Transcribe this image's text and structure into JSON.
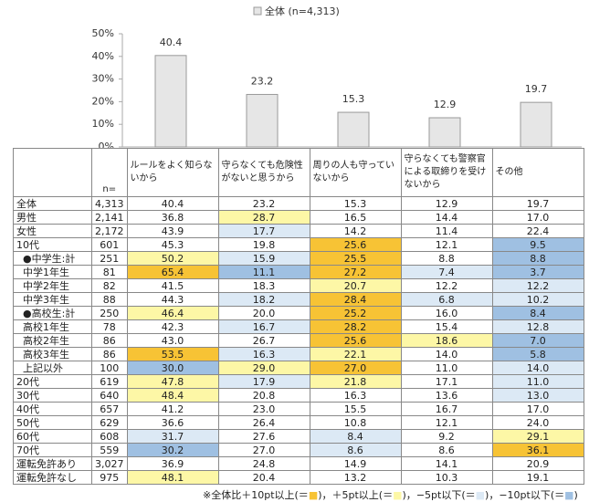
{
  "chart_data": {
    "type": "bar",
    "categories": [
      "ルールをよく知らないから",
      "守らなくても危険性がないと思うから",
      "周りの人も守っていないから",
      "守らなくても警察官による取締りを受けないから",
      "その他"
    ],
    "series": [
      {
        "name": "全体 (n=4,313)",
        "color": "#e6e6e6",
        "values": [
          40.4,
          23.2,
          15.3,
          12.9,
          19.7
        ]
      }
    ],
    "ylim": [
      0,
      50
    ],
    "yticks": [
      {
        "value": 0,
        "label": "0%"
      },
      {
        "value": 10,
        "label": "10%"
      },
      {
        "value": 20,
        "label": "20%"
      },
      {
        "value": 30,
        "label": "30%"
      },
      {
        "value": 40,
        "label": "40%"
      },
      {
        "value": 50,
        "label": "50%"
      }
    ],
    "legend": "top"
  },
  "table": {
    "n_header": "n=",
    "rows": [
      {
        "label": "全体",
        "n": "4,313",
        "cells": [
          "40.4",
          "23.2",
          "15.3",
          "12.9",
          "19.7"
        ],
        "colors": [
          null,
          null,
          null,
          null,
          null
        ]
      },
      {
        "label": "男性",
        "n": "2,141",
        "cells": [
          "36.8",
          "28.7",
          "16.5",
          "14.4",
          "17.0"
        ],
        "colors": [
          null,
          "#fdf7a6",
          null,
          null,
          null
        ]
      },
      {
        "label": "女性",
        "n": "2,172",
        "cells": [
          "43.9",
          "17.7",
          "14.2",
          "11.4",
          "22.4"
        ],
        "colors": [
          null,
          "#dce9f5",
          null,
          null,
          null
        ]
      },
      {
        "label": "10代",
        "n": "601",
        "cells": [
          "45.3",
          "19.8",
          "25.6",
          "12.1",
          "9.5"
        ],
        "colors": [
          null,
          null,
          "#f7c335",
          null,
          "#9fc0e2"
        ]
      },
      {
        "label": "●中学生:計",
        "n": "251",
        "indent": true,
        "cells": [
          "50.2",
          "15.9",
          "25.5",
          "8.8",
          "8.8"
        ],
        "colors": [
          "#fdf7a6",
          "#dce9f5",
          "#f7c335",
          null,
          "#9fc0e2"
        ]
      },
      {
        "label": "中学1年生",
        "n": "81",
        "indent": true,
        "cells": [
          "65.4",
          "11.1",
          "27.2",
          "7.4",
          "3.7"
        ],
        "colors": [
          "#f7c335",
          "#9fc0e2",
          "#f7c335",
          "#dce9f5",
          "#9fc0e2"
        ]
      },
      {
        "label": "中学2年生",
        "n": "82",
        "indent": true,
        "cells": [
          "41.5",
          "18.3",
          "20.7",
          "12.2",
          "12.2"
        ],
        "colors": [
          null,
          null,
          "#fdf7a6",
          null,
          "#dce9f5"
        ]
      },
      {
        "label": "中学3年生",
        "n": "88",
        "indent": true,
        "cells": [
          "44.3",
          "18.2",
          "28.4",
          "6.8",
          "10.2"
        ],
        "colors": [
          null,
          "#dce9f5",
          "#f7c335",
          "#dce9f5",
          "#dce9f5"
        ]
      },
      {
        "label": "●高校生:計",
        "n": "250",
        "indent": true,
        "cells": [
          "46.4",
          "20.0",
          "25.2",
          "16.0",
          "8.4"
        ],
        "colors": [
          "#fdf7a6",
          null,
          "#f7c335",
          null,
          "#9fc0e2"
        ]
      },
      {
        "label": "高校1年生",
        "n": "78",
        "indent": true,
        "cells": [
          "42.3",
          "16.7",
          "28.2",
          "15.4",
          "12.8"
        ],
        "colors": [
          null,
          "#dce9f5",
          "#f7c335",
          null,
          "#dce9f5"
        ]
      },
      {
        "label": "高校2年生",
        "n": "86",
        "indent": true,
        "cells": [
          "43.0",
          "26.7",
          "25.6",
          "18.6",
          "7.0"
        ],
        "colors": [
          null,
          null,
          "#f7c335",
          "#fdf7a6",
          "#9fc0e2"
        ]
      },
      {
        "label": "高校3年生",
        "n": "86",
        "indent": true,
        "cells": [
          "53.5",
          "16.3",
          "22.1",
          "14.0",
          "5.8"
        ],
        "colors": [
          "#f7c335",
          "#dce9f5",
          "#fdf7a6",
          null,
          "#9fc0e2"
        ]
      },
      {
        "label": "上記以外",
        "n": "100",
        "indent": true,
        "cells": [
          "30.0",
          "29.0",
          "27.0",
          "11.0",
          "14.0"
        ],
        "colors": [
          "#9fc0e2",
          "#fdf7a6",
          "#f7c335",
          null,
          "#dce9f5"
        ]
      },
      {
        "label": "20代",
        "n": "619",
        "cells": [
          "47.8",
          "17.9",
          "21.8",
          "17.1",
          "11.0"
        ],
        "colors": [
          "#fdf7a6",
          "#dce9f5",
          "#fdf7a6",
          null,
          "#dce9f5"
        ]
      },
      {
        "label": "30代",
        "n": "640",
        "cells": [
          "48.4",
          "20.8",
          "16.3",
          "13.6",
          "13.0"
        ],
        "colors": [
          "#fdf7a6",
          null,
          null,
          null,
          "#dce9f5"
        ]
      },
      {
        "label": "40代",
        "n": "657",
        "cells": [
          "41.2",
          "23.0",
          "15.5",
          "16.7",
          "17.0"
        ],
        "colors": [
          null,
          null,
          null,
          null,
          null
        ]
      },
      {
        "label": "50代",
        "n": "629",
        "cells": [
          "36.6",
          "26.4",
          "10.8",
          "12.1",
          "24.0"
        ],
        "colors": [
          null,
          null,
          null,
          null,
          null
        ]
      },
      {
        "label": "60代",
        "n": "608",
        "cells": [
          "31.7",
          "27.6",
          "8.4",
          "9.2",
          "29.1"
        ],
        "colors": [
          "#dce9f5",
          null,
          "#dce9f5",
          null,
          "#fdf7a6"
        ]
      },
      {
        "label": "70代",
        "n": "559",
        "cells": [
          "30.2",
          "27.0",
          "8.6",
          "8.6",
          "36.1"
        ],
        "colors": [
          "#9fc0e2",
          null,
          "#dce9f5",
          null,
          "#f7c335"
        ]
      },
      {
        "label": "運転免許あり",
        "n": "3,027",
        "cells": [
          "36.9",
          "24.8",
          "14.9",
          "14.1",
          "20.9"
        ],
        "colors": [
          null,
          null,
          null,
          null,
          null
        ]
      },
      {
        "label": "運転免許なし",
        "n": "975",
        "cells": [
          "48.1",
          "20.4",
          "13.2",
          "10.3",
          "19.1"
        ],
        "colors": [
          "#fdf7a6",
          null,
          null,
          null,
          null
        ]
      }
    ]
  },
  "footnote": {
    "prefix": "※全体比",
    "mark": "■",
    "items": [
      {
        "label": "＋10pt以上(＝",
        "color": "#f7c335",
        "suffix": ")，"
      },
      {
        "label": "＋5pt以上(＝",
        "color": "#fdf7a6",
        "suffix": ")，"
      },
      {
        "label": "−5pt以下(＝",
        "color": "#dce9f5",
        "suffix": ")，"
      },
      {
        "label": "−10pt以下(＝",
        "color": "#9fc0e2",
        "suffix": ")"
      }
    ]
  }
}
